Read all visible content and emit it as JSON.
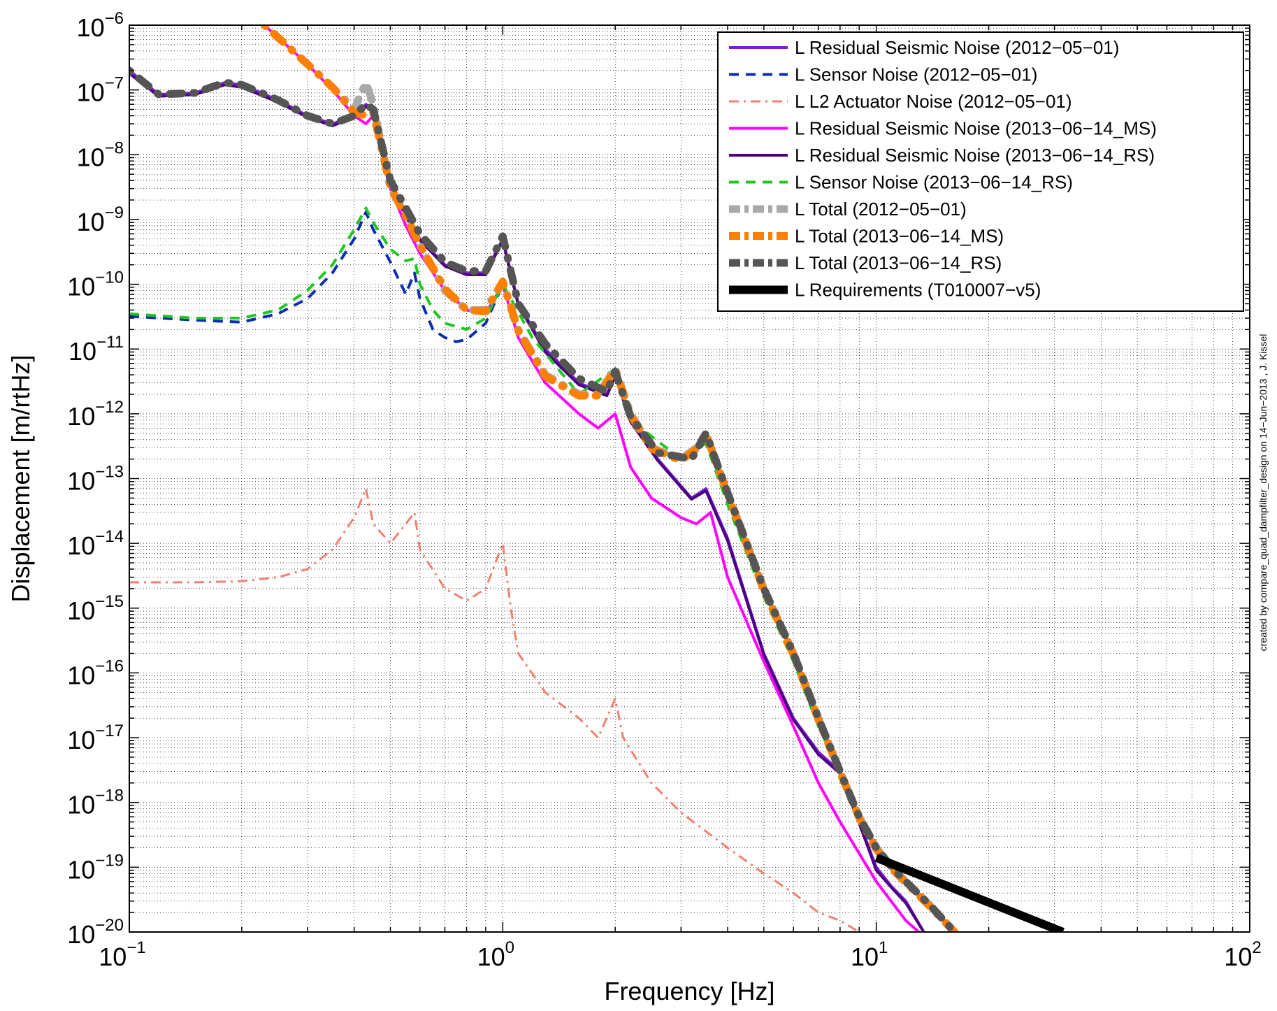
{
  "chart_data": {
    "type": "line",
    "title": "",
    "xlabel": "Frequency [Hz]",
    "ylabel": "Displacement [m/rtHz]",
    "xscale": "log",
    "yscale": "log",
    "xlim": [
      0.1,
      100
    ],
    "ylim": [
      1e-20,
      1e-06
    ],
    "grid": true,
    "legend_position": "top-right",
    "x_ticks": [
      {
        "value": 0.1,
        "base": "10",
        "exp": "−1"
      },
      {
        "value": 1,
        "base": "10",
        "exp": "0"
      },
      {
        "value": 10,
        "base": "10",
        "exp": "1"
      },
      {
        "value": 100,
        "base": "10",
        "exp": "2"
      }
    ],
    "y_ticks": [
      {
        "value": -6,
        "base": "10",
        "exp": "−6"
      },
      {
        "value": -7,
        "base": "10",
        "exp": "−7"
      },
      {
        "value": -8,
        "base": "10",
        "exp": "−8"
      },
      {
        "value": -9,
        "base": "10",
        "exp": "−9"
      },
      {
        "value": -10,
        "base": "10",
        "exp": "−10"
      },
      {
        "value": -11,
        "base": "10",
        "exp": "−11"
      },
      {
        "value": -12,
        "base": "10",
        "exp": "−12"
      },
      {
        "value": -13,
        "base": "10",
        "exp": "−13"
      },
      {
        "value": -14,
        "base": "10",
        "exp": "−14"
      },
      {
        "value": -15,
        "base": "10",
        "exp": "−15"
      },
      {
        "value": -16,
        "base": "10",
        "exp": "−16"
      },
      {
        "value": -17,
        "base": "10",
        "exp": "−17"
      },
      {
        "value": -18,
        "base": "10",
        "exp": "−18"
      },
      {
        "value": -19,
        "base": "10",
        "exp": "−19"
      },
      {
        "value": -20,
        "base": "10",
        "exp": "−20"
      }
    ],
    "credit": "created by compare_quad_dampfilter_design on 14−Jun−2013 , J. Kissel",
    "series": [
      {
        "name": "L Residual Seismic Noise (2012−05−01)",
        "color": "#7b1fd6",
        "style": "solid",
        "x": [
          0.1,
          0.12,
          0.15,
          0.18,
          0.2,
          0.25,
          0.3,
          0.35,
          0.4,
          0.43,
          0.45,
          0.5,
          0.55,
          0.6,
          0.7,
          0.8,
          0.9,
          1.0,
          1.1,
          1.3,
          1.6,
          1.9,
          2.0,
          2.2,
          2.6,
          3.2,
          3.5,
          4.0,
          5.0,
          6.0,
          7.0,
          8.0,
          9.0,
          10.0,
          11.0,
          12.0,
          13.4
        ],
        "y": [
          2e-07,
          8.5e-08,
          9e-08,
          1.3e-07,
          1.2e-07,
          7e-08,
          4e-08,
          3e-08,
          4e-08,
          6e-08,
          5e-08,
          4e-09,
          1.2e-09,
          5e-10,
          2e-10,
          1.5e-10,
          1.5e-10,
          5e-10,
          5e-11,
          1e-11,
          3e-12,
          2e-12,
          4e-12,
          8e-13,
          2e-13,
          5e-14,
          7e-14,
          1.2e-14,
          2e-16,
          2e-17,
          6e-18,
          3e-18,
          5e-19,
          1e-19,
          5e-20,
          3e-20,
          1e-20
        ]
      },
      {
        "name": "L Sensor Noise (2012−05−01)",
        "color": "#0a2db4",
        "style": "dashed",
        "x": [
          0.1,
          0.15,
          0.2,
          0.25,
          0.3,
          0.35,
          0.4,
          0.43,
          0.45,
          0.5,
          0.55,
          0.58,
          0.6,
          0.65,
          0.7,
          0.75,
          0.8,
          0.9,
          1.0
        ],
        "y": [
          3.2e-11,
          2.8e-11,
          2.6e-11,
          3.5e-11,
          6e-11,
          1.5e-10,
          5e-10,
          1.3e-09,
          7e-10,
          2.2e-10,
          7e-11,
          1.5e-10,
          6e-11,
          2e-11,
          1.5e-11,
          1.3e-11,
          1.4e-11,
          2.5e-11,
          1e-10
        ]
      },
      {
        "name": "L L2 Actuator Noise (2012−05−01)",
        "color": "#f08070",
        "style": "dashdot",
        "x": [
          0.1,
          0.15,
          0.2,
          0.25,
          0.3,
          0.35,
          0.4,
          0.43,
          0.45,
          0.5,
          0.55,
          0.58,
          0.6,
          0.7,
          0.8,
          0.9,
          1.0,
          1.05,
          1.1,
          1.3,
          1.6,
          1.8,
          2.0,
          2.1,
          2.5,
          3.0,
          4.0,
          5.0,
          6.0,
          7.0,
          8.0,
          9.0,
          9.5
        ],
        "y": [
          2.5e-15,
          2.5e-15,
          2.6e-15,
          3e-15,
          4e-15,
          8e-15,
          2.5e-14,
          7e-14,
          2e-14,
          1e-14,
          2e-14,
          3e-14,
          8e-15,
          2e-15,
          1.3e-15,
          2e-15,
          1e-14,
          1e-15,
          2e-16,
          5e-17,
          2e-17,
          1e-17,
          4e-17,
          1e-17,
          2e-18,
          7e-19,
          2e-19,
          8e-20,
          4e-20,
          2e-20,
          1.5e-20,
          1e-20,
          8e-21
        ]
      },
      {
        "name": "L Residual Seismic Noise (2013−06−14_MS)",
        "color": "#ff00ff",
        "style": "solid",
        "x": [
          0.23,
          0.3,
          0.35,
          0.4,
          0.43,
          0.45,
          0.5,
          0.55,
          0.6,
          0.7,
          0.8,
          0.9,
          1.0,
          1.1,
          1.3,
          1.6,
          1.8,
          2.0,
          2.2,
          2.5,
          3.0,
          3.3,
          3.6,
          4.0,
          5.0,
          6.0,
          7.0,
          8.0,
          10.0,
          12.0,
          13.0
        ],
        "y": [
          1e-06,
          2.5e-07,
          1e-07,
          4e-08,
          3e-08,
          4e-08,
          3e-09,
          8e-10,
          3e-10,
          8e-11,
          4e-11,
          3.5e-11,
          1e-10,
          1.5e-11,
          3e-12,
          1e-12,
          6e-13,
          1e-12,
          1.5e-13,
          5e-14,
          2.5e-14,
          2e-14,
          3e-14,
          3e-15,
          1.5e-16,
          1.5e-17,
          2e-18,
          5e-19,
          6e-20,
          1.5e-20,
          1e-20
        ]
      },
      {
        "name": "L Residual Seismic Noise (2013−06−14_RS)",
        "color": "#4b0082",
        "style": "solid",
        "x": [
          0.1,
          0.12,
          0.15,
          0.18,
          0.2,
          0.25,
          0.3,
          0.35,
          0.4,
          0.43,
          0.45,
          0.5,
          0.55,
          0.6,
          0.7,
          0.8,
          0.9,
          1.0,
          1.1,
          1.3,
          1.6,
          1.9,
          2.0,
          2.2,
          2.6,
          3.2,
          3.5,
          4.0,
          5.0,
          6.0,
          7.0,
          8.0,
          9.0,
          10.0,
          11.0,
          12.0,
          13.4
        ],
        "y": [
          1.8e-07,
          8e-08,
          8.5e-08,
          1.2e-07,
          1.1e-07,
          6.5e-08,
          3.8e-08,
          2.8e-08,
          3.8e-08,
          5.5e-08,
          4.8e-08,
          3.8e-09,
          1.1e-09,
          4.8e-10,
          1.9e-10,
          1.4e-10,
          1.4e-10,
          4.8e-10,
          4.8e-11,
          9e-12,
          2.8e-12,
          1.9e-12,
          3.8e-12,
          7.5e-13,
          1.9e-13,
          4.8e-14,
          6.5e-14,
          1.1e-14,
          1.9e-16,
          1.9e-17,
          5.5e-18,
          2.8e-18,
          4.8e-19,
          9e-20,
          4.8e-20,
          2.8e-20,
          1e-20
        ]
      },
      {
        "name": "L Sensor Noise (2013−06−14_RS)",
        "color": "#1ec81e",
        "style": "dashed",
        "x": [
          0.1,
          0.15,
          0.2,
          0.25,
          0.3,
          0.35,
          0.4,
          0.43,
          0.45,
          0.5,
          0.55,
          0.58,
          0.6,
          0.65,
          0.7,
          0.8,
          0.9,
          1.0,
          1.2,
          1.6,
          2.0,
          2.2,
          3.0,
          3.5,
          4.0,
          5.0,
          6.0,
          7.0,
          8.0,
          9.0,
          10.0
        ],
        "y": [
          3.5e-11,
          3e-11,
          3e-11,
          4e-11,
          8e-11,
          2e-10,
          7e-10,
          1.5e-09,
          9e-10,
          3.5e-10,
          2.3e-10,
          2.5e-10,
          1e-10,
          4e-11,
          2.5e-11,
          2e-11,
          3e-11,
          1e-10,
          1.5e-11,
          2e-12,
          5e-12,
          8e-13,
          2e-13,
          3.5e-13,
          4e-14,
          1.5e-15,
          1.5e-16,
          1.5e-17,
          3e-18,
          7e-19,
          2e-19
        ]
      },
      {
        "name": "L Total (2012−05−01)",
        "color": "#a9a9a9",
        "style": "dotdash-thick",
        "x": [
          0.23,
          0.3,
          0.35,
          0.4,
          0.43,
          0.45,
          0.5,
          0.55,
          0.6,
          0.7,
          0.8,
          0.9,
          1.0,
          1.1,
          1.3,
          1.6,
          1.8,
          2.0,
          2.2,
          2.5,
          3.0,
          3.3,
          3.5,
          4.0,
          5.0,
          6.0,
          7.0,
          8.0,
          9.0,
          10.0,
          11.0,
          12.0,
          14.0,
          16.2
        ],
        "y": [
          1e-06,
          2.5e-07,
          1.1e-07,
          5e-08,
          1.3e-07,
          6e-08,
          3e-09,
          1.2e-09,
          4e-10,
          8e-11,
          4e-11,
          4e-11,
          1.1e-10,
          2e-11,
          4e-12,
          2e-12,
          2e-12,
          5e-12,
          1e-12,
          3e-13,
          2e-13,
          3e-13,
          5e-13,
          6e-14,
          2e-15,
          2e-16,
          2e-17,
          3e-18,
          6e-19,
          2e-19,
          1e-19,
          6e-20,
          2.5e-20,
          1e-20
        ]
      },
      {
        "name": "L Total (2013−06−14_MS)",
        "color": "#ff8000",
        "style": "dotdash-thick",
        "x": [
          0.23,
          0.3,
          0.35,
          0.4,
          0.43,
          0.45,
          0.5,
          0.55,
          0.6,
          0.7,
          0.8,
          0.9,
          1.0,
          1.1,
          1.3,
          1.6,
          1.8,
          2.0,
          2.2,
          2.5,
          3.0,
          3.3,
          3.5,
          4.0,
          5.0,
          6.0,
          7.0,
          8.0,
          9.0,
          10.0,
          11.0,
          12.0,
          14.0,
          16.2
        ],
        "y": [
          1e-06,
          2.5e-07,
          1.1e-07,
          4.5e-08,
          4e-08,
          4.5e-08,
          3.2e-09,
          1.1e-09,
          4e-10,
          8.5e-11,
          4e-11,
          3.8e-11,
          1.1e-10,
          1.9e-11,
          3.8e-12,
          1.9e-12,
          1.9e-12,
          4.8e-12,
          9.5e-13,
          2.9e-13,
          1.9e-13,
          2.9e-13,
          4.8e-13,
          5.8e-14,
          1.9e-15,
          1.9e-16,
          1.9e-17,
          2.9e-18,
          5.8e-19,
          1.9e-19,
          9.5e-20,
          5.8e-20,
          2.4e-20,
          1e-20
        ]
      },
      {
        "name": "L Total (2013−06−14_RS)",
        "color": "#555555",
        "style": "dotdash-thick",
        "x": [
          0.1,
          0.12,
          0.15,
          0.18,
          0.2,
          0.25,
          0.3,
          0.35,
          0.4,
          0.43,
          0.45,
          0.5,
          0.55,
          0.6,
          0.7,
          0.8,
          0.9,
          1.0,
          1.1,
          1.3,
          1.6,
          1.9,
          2.0,
          2.2,
          2.6,
          3.2,
          3.5,
          4.0,
          5.0,
          6.0,
          7.0,
          8.0,
          9.0,
          10.0,
          11.0,
          12.0,
          14.0,
          16.2
        ],
        "y": [
          2e-07,
          8.5e-08,
          9e-08,
          1.3e-07,
          1.2e-07,
          7e-08,
          4e-08,
          3e-08,
          4e-08,
          6e-08,
          5e-08,
          4e-09,
          1.5e-09,
          6e-10,
          2.2e-10,
          1.6e-10,
          1.6e-10,
          5.5e-10,
          5e-11,
          1.2e-11,
          3.5e-12,
          2.2e-12,
          4.5e-12,
          9e-13,
          2.5e-13,
          2e-13,
          5e-13,
          6e-14,
          2e-15,
          2e-16,
          2e-17,
          3e-18,
          6e-19,
          2e-19,
          1e-19,
          6e-20,
          2.5e-20,
          1e-20
        ]
      },
      {
        "name": "L Requirements (T010007−v5)",
        "color": "#000000",
        "style": "solid-thick",
        "x": [
          10,
          31.6
        ],
        "y": [
          1.4e-19,
          1e-20
        ]
      }
    ]
  }
}
